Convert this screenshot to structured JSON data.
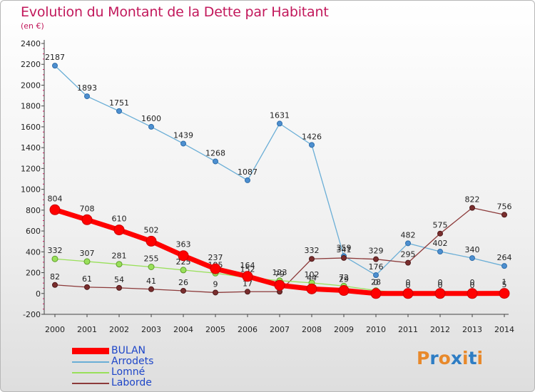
{
  "chart_data": {
    "type": "line",
    "title": "Evolution du Montant de la Dette par Habitant",
    "unit": "(en €)",
    "xlabel": "",
    "ylabel": "",
    "x": [
      "2000",
      "2001",
      "2002",
      "2003",
      "2004",
      "2005",
      "2006",
      "2007",
      "2008",
      "2009",
      "2010",
      "2011",
      "2012",
      "2013",
      "2014"
    ],
    "yticks": [
      "-200",
      "0",
      "200",
      "400",
      "600",
      "800",
      "1000",
      "1200",
      "1400",
      "1600",
      "1800",
      "2000",
      "2200",
      "2400"
    ],
    "ylim": [
      -200,
      2400
    ],
    "grid": false,
    "legend_position": "bottom-left",
    "series": [
      {
        "name": "BULAN",
        "color": "#ff0000",
        "values": [
          804,
          708,
          610,
          502,
          363,
          237,
          164,
          79,
          44,
          29,
          0,
          0,
          0,
          0,
          1
        ],
        "labels": [
          "804",
          "708",
          "610",
          "502",
          "363",
          "237",
          "164",
          "79",
          "44",
          "29",
          "0",
          "0",
          "0",
          "0",
          "1"
        ]
      },
      {
        "name": "Arrodets",
        "color": "#5b9bd5",
        "values": [
          2187,
          1893,
          1751,
          1600,
          1439,
          1268,
          1087,
          1631,
          1426,
          359,
          176,
          482,
          402,
          340,
          264
        ],
        "labels": [
          "2187",
          "1893",
          "1751",
          "1600",
          "1439",
          "1268",
          "1087",
          "1631",
          "1426",
          "359",
          "176",
          "482",
          "402",
          "340",
          "264"
        ]
      },
      {
        "name": "Lomné",
        "color": "#8fd14f",
        "values": [
          332,
          307,
          281,
          255,
          225,
          195,
          152,
          123,
          102,
          72,
          28,
          0,
          0,
          0,
          5
        ],
        "labels": [
          "332",
          "307",
          "281",
          "255",
          "225",
          "195",
          "152",
          "123",
          "102",
          "72",
          "28",
          "0",
          "0",
          "0",
          "5"
        ]
      },
      {
        "name": "Laborde",
        "color": "#7a2e2e",
        "values": [
          82,
          61,
          54,
          41,
          26,
          9,
          17,
          17,
          332,
          341,
          329,
          295,
          575,
          822,
          756
        ],
        "labels": [
          "82",
          "61",
          "54",
          "41",
          "26",
          "9",
          "17",
          "17",
          "332",
          "341",
          "329",
          "295",
          "575",
          "822",
          "756"
        ]
      }
    ]
  },
  "logo": {
    "text": "Proxiti",
    "colors": [
      "#e8892b",
      "#2e7dc4",
      "#e8892b",
      "#2e7dc4",
      "#e8892b",
      "#2e7dc4",
      "#e8892b"
    ]
  }
}
